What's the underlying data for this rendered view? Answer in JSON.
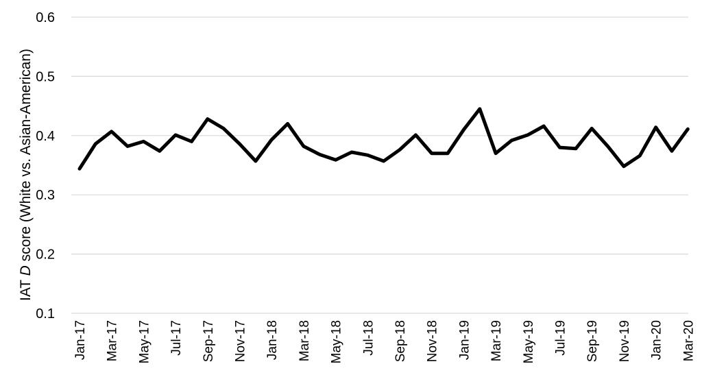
{
  "chart_data": {
    "type": "line",
    "title": "",
    "ylabel_prefix": "IAT ",
    "ylabel_italic": "D",
    "ylabel_suffix": " score (White vs. Asian-American)",
    "xlabel": "",
    "ylim": [
      0.1,
      0.6
    ],
    "yticks": [
      "0.1",
      "0.2",
      "0.3",
      "0.4",
      "0.5",
      "0.6"
    ],
    "grid": true,
    "categories": [
      "Jan-17",
      "Feb-17",
      "Mar-17",
      "Apr-17",
      "May-17",
      "Jun-17",
      "Jul-17",
      "Aug-17",
      "Sep-17",
      "Oct-17",
      "Nov-17",
      "Dec-17",
      "Jan-18",
      "Feb-18",
      "Mar-18",
      "Apr-18",
      "May-18",
      "Jun-18",
      "Jul-18",
      "Aug-18",
      "Sep-18",
      "Oct-18",
      "Nov-18",
      "Dec-18",
      "Jan-19",
      "Feb-19",
      "Mar-19",
      "Apr-19",
      "May-19",
      "Jun-19",
      "Jul-19",
      "Aug-19",
      "Sep-19",
      "Oct-19",
      "Nov-19",
      "Dec-19",
      "Jan-20",
      "Feb-20",
      "Mar-20"
    ],
    "shown_tick_labels": [
      "Jan-17",
      "Mar-17",
      "May-17",
      "Jul-17",
      "Sep-17",
      "Nov-17",
      "Jan-18",
      "Mar-18",
      "May-18",
      "Jul-18",
      "Sep-18",
      "Nov-18",
      "Jan-19",
      "Mar-19",
      "May-19",
      "Jul-19",
      "Sep-19",
      "Nov-19",
      "Jan-20",
      "Mar-20"
    ],
    "series": [
      {
        "color": "#000000",
        "values": [
          0.344,
          0.386,
          0.407,
          0.382,
          0.39,
          0.374,
          0.401,
          0.39,
          0.428,
          0.412,
          0.386,
          0.357,
          0.393,
          0.42,
          0.382,
          0.368,
          0.359,
          0.372,
          0.367,
          0.357,
          0.376,
          0.401,
          0.37,
          0.37,
          0.41,
          0.445,
          0.37,
          0.392,
          0.401,
          0.416,
          0.38,
          0.378,
          0.412,
          0.382,
          0.348,
          0.366,
          0.414,
          0.374,
          0.411
        ]
      }
    ]
  }
}
